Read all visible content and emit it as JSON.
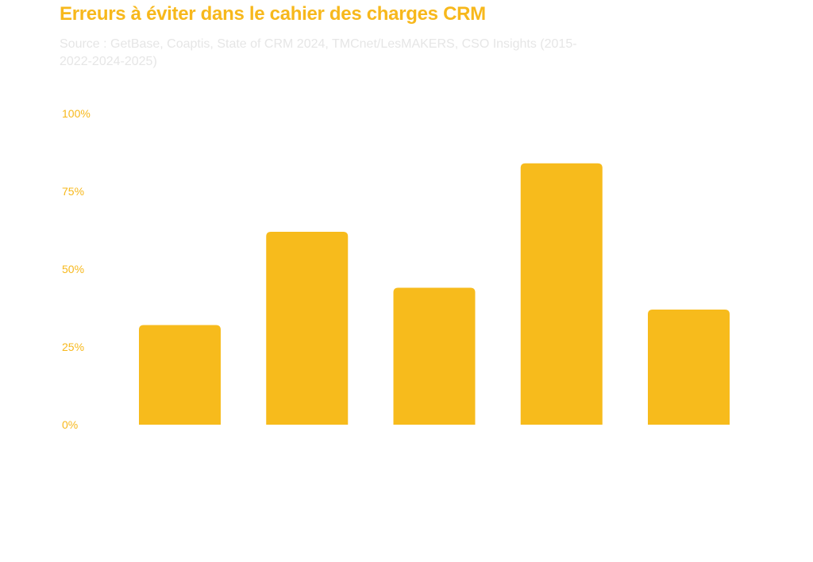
{
  "chart_data": {
    "type": "bar",
    "title": "Erreurs à éviter dans le cahier des charges CRM",
    "subtitle": "Source : GetBase, Coaptis, State of CRM 2024, TMCnet/LesMAKERS, CSO Insights (2015-2022-2024-2025)",
    "categories": [
      "",
      "",
      "",
      "",
      ""
    ],
    "values": [
      32,
      62,
      44,
      84,
      37
    ],
    "ylim": [
      0,
      100
    ],
    "yticks": [
      "0%",
      "25%",
      "50%",
      "75%",
      "100%"
    ],
    "ytick_values": [
      0,
      25,
      50,
      75,
      100
    ],
    "xlabel": "",
    "ylabel": "",
    "grid": false,
    "bar_color": "#f7bb1c",
    "accent": "#f7b81c"
  }
}
